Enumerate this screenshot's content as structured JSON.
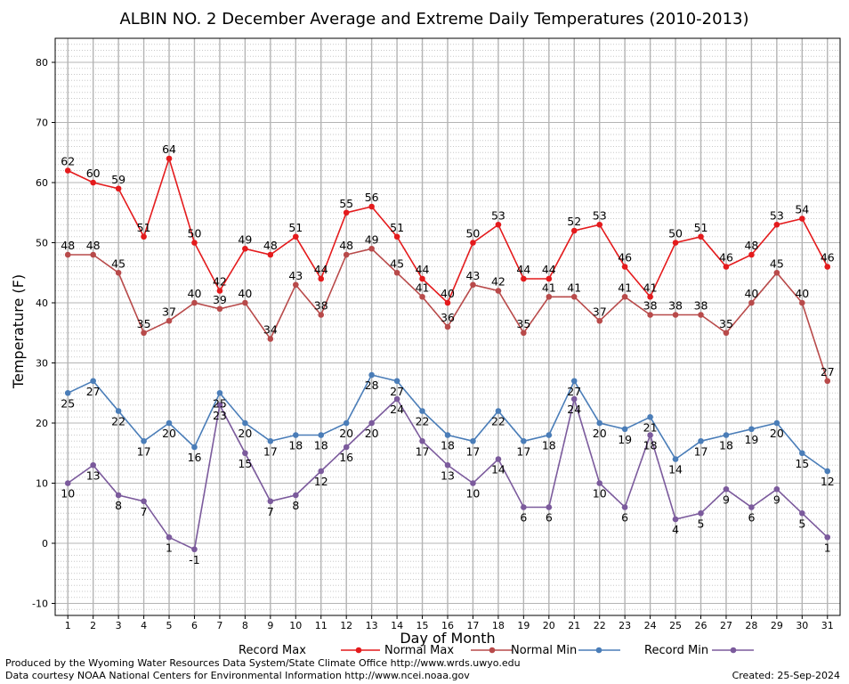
{
  "chart_data": {
    "type": "line",
    "title": "ALBIN NO. 2 December Average and Extreme Daily Temperatures (2010-2013)",
    "xlabel": "Day of Month",
    "ylabel": "Temperature (F)",
    "xlim": [
      0.5,
      31.5
    ],
    "ylim": [
      -12,
      84
    ],
    "x": [
      1,
      2,
      3,
      4,
      5,
      6,
      7,
      8,
      9,
      10,
      11,
      12,
      13,
      14,
      15,
      16,
      17,
      18,
      19,
      20,
      21,
      22,
      23,
      24,
      25,
      26,
      27,
      28,
      29,
      30,
      31
    ],
    "x_tick_labels": [
      "1",
      "2",
      "3",
      "4",
      "5",
      "6",
      "7",
      "8",
      "9",
      "10",
      "11",
      "12",
      "13",
      "14",
      "15",
      "16",
      "17",
      "18",
      "19",
      "20",
      "21",
      "22",
      "23",
      "24",
      "25",
      "26",
      "27",
      "28",
      "29",
      "30",
      "31"
    ],
    "y_ticks": [
      -10,
      0,
      10,
      20,
      30,
      40,
      50,
      60,
      70,
      80
    ],
    "y_tick_labels": [
      "-10",
      "0",
      "10",
      "20",
      "30",
      "40",
      "50",
      "60",
      "70",
      "80"
    ],
    "grid": true,
    "legend_placement": "bottom",
    "series": [
      {
        "name": "Record Max",
        "color": "#e41a1c",
        "label_position": "above",
        "values": [
          62,
          60,
          59,
          51,
          64,
          50,
          42,
          49,
          48,
          51,
          44,
          55,
          56,
          51,
          44,
          40,
          50,
          53,
          44,
          44,
          52,
          53,
          46,
          41,
          50,
          51,
          46,
          48,
          53,
          54,
          46
        ],
        "labels": [
          "62",
          "60",
          "59",
          "51",
          "64",
          "50",
          "42",
          "49",
          "48",
          "51",
          "44",
          "55",
          "56",
          "51",
          "44",
          "40",
          "50",
          "53",
          "44",
          "44",
          "52",
          "53",
          "46",
          "41",
          "50",
          "51",
          "46",
          "48",
          "53",
          "54",
          "46"
        ]
      },
      {
        "name": "Normal Max",
        "color": "#b84a4a",
        "label_position": "above",
        "values": [
          48,
          48,
          45,
          35,
          37,
          40,
          39,
          40,
          34,
          43,
          38,
          48,
          49,
          45,
          41,
          36,
          43,
          42,
          35,
          41,
          41,
          37,
          41,
          38,
          38,
          38,
          35,
          40,
          45,
          40,
          27
        ],
        "labels": [
          "48",
          "48",
          "45",
          "35",
          "37",
          "40",
          "39",
          "40",
          "34",
          "43",
          "38",
          "48",
          "49",
          "45",
          "41",
          "36",
          "43",
          "42",
          "35",
          "41",
          "41",
          "37",
          "41",
          "38",
          "38",
          "38",
          "35",
          "40",
          "45",
          "40",
          "27"
        ]
      },
      {
        "name": "Normal Min",
        "color": "#4a7db8",
        "label_position": "below",
        "values": [
          25,
          27,
          22,
          17,
          20,
          16,
          25,
          20,
          17,
          18,
          18,
          20,
          28,
          27,
          22,
          18,
          17,
          22,
          17,
          18,
          27,
          20,
          19,
          21,
          14,
          17,
          18,
          19,
          20,
          15,
          12
        ],
        "labels": [
          "25",
          "27",
          "22",
          "17",
          "20",
          "16",
          "25",
          "20",
          "17",
          "18",
          "18",
          "20",
          "28",
          "27",
          "22",
          "18",
          "17",
          "22",
          "17",
          "18",
          "27",
          "20",
          "19",
          "21",
          "14",
          "17",
          "18",
          "19",
          "20",
          "15",
          "12"
        ]
      },
      {
        "name": "Record Min",
        "color": "#7b5a9c",
        "label_position": "below",
        "values": [
          10,
          13,
          8,
          7,
          1,
          -1,
          23,
          15,
          7,
          8,
          12,
          16,
          20,
          24,
          17,
          13,
          10,
          14,
          6,
          6,
          24,
          10,
          6,
          18,
          4,
          5,
          9,
          6,
          9,
          5,
          1
        ],
        "labels": [
          "10",
          "13",
          "8",
          "7",
          "1",
          "-1",
          "23",
          "15",
          "7",
          "8",
          "12",
          "16",
          "20",
          "24",
          "17",
          "13",
          "10",
          "14",
          "6",
          "6",
          "24",
          "10",
          "6",
          "18",
          "4",
          "5",
          "9",
          "6",
          "9",
          "5",
          "1"
        ]
      }
    ]
  },
  "footer": {
    "credit_line_1": "Produced by the Wyoming Water Resources Data System/State Climate Office http://www.wrds.uwyo.edu",
    "credit_line_2": "Data courtesy NOAA National Centers for Environmental Information http://www.ncei.noaa.gov",
    "created": "Created:  25-Sep-2024"
  }
}
